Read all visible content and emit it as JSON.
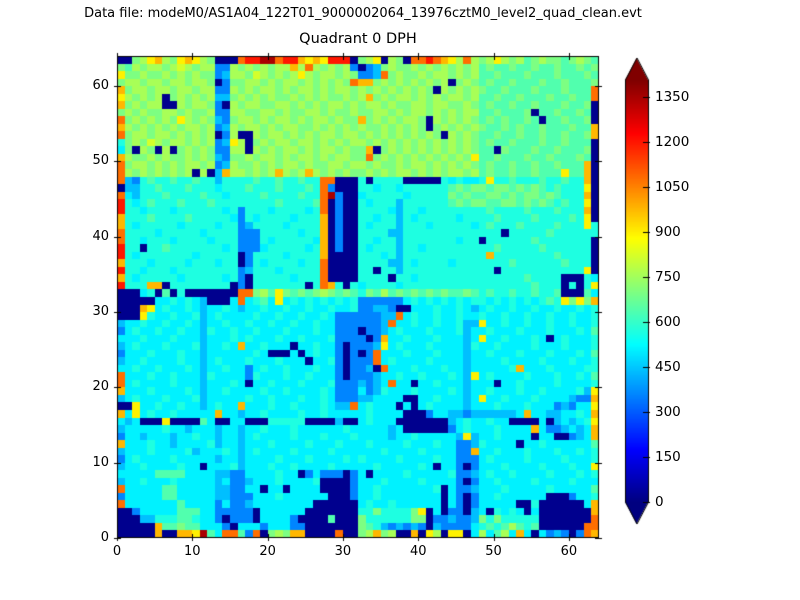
{
  "figure": {
    "suptitle": "Data file: modeM0/AS1A04_122T01_9000002064_13976cztM0_level2_quad_clean.evt",
    "title": "Quadrant 0 DPH",
    "background": "#ffffff",
    "axis_color": "#000000",
    "text_color": "#000000"
  },
  "chart_data": {
    "type": "heatmap",
    "title": "Quadrant 0 DPH",
    "xlabel": "",
    "ylabel": "",
    "x_range": [
      0,
      64
    ],
    "y_range": [
      0,
      64
    ],
    "x_ticks": [
      0,
      10,
      20,
      30,
      40,
      50,
      60
    ],
    "y_ticks": [
      0,
      10,
      20,
      30,
      40,
      50,
      60
    ],
    "grid": false,
    "colormap": "jet",
    "vmin": 0,
    "vmax": 1408,
    "colorbar": {
      "ticks": [
        0,
        150,
        300,
        450,
        600,
        750,
        900,
        1050,
        1200,
        1350
      ],
      "extend": "both",
      "min_color": "#000080",
      "max_color": "#800000"
    },
    "value_bins": {
      "0": 20,
      "1": 160,
      "2": 270,
      "3": 360,
      "4": 440,
      "5": 510,
      "6": 570,
      "7": 640,
      "8": 700,
      "9": 760,
      "a": 820,
      "b": 900,
      "c": 980,
      "d": 1080,
      "e": 1200,
      "f": 1350
    },
    "grid_encoding": "each row is 64 hex chars (col 0..63); char indexes value_bins (counts in DPH); rows listed top-to-bottom (y=63 first)",
    "grid_quads_top_to_bottom": [
      [
        "0089bc98bcb98000",
        "deeffdeecbcbeee0",
        "89b0980ddedcb9d9",
        "89b9897898878987"
      ],
      [
        "87989989a9899339",
        "8989899c9d989893",
        "0348988989898989",
        "7877877877877878"
      ],
      [
        "b889889898988349",
        "98a98989b9899898",
        "334d898898998989",
        "7787778777877787"
      ],
      [
        "8998998998998038",
        "899898998989898d",
        "cc89898989890898",
        "7877877787787778"
      ],
      [
        "c899899899899339",
        "8989989899898998",
        "9898989898098989",
        "877877787778777d"
      ],
      [
        "b989890898989448",
        "9898988989898898",
        "9c89899898989989",
        "778778777877877d"
      ],
      [
        "c898990098998309",
        "8998899898989989",
        "8998988998998898",
        "7877877877787780"
      ],
      [
        "8989889989889339",
        "9889989889989889",
        "8899898998989899",
        "7787778077877870"
      ],
      [
        "d8989898b9898438",
        "9989899898998988",
        "c898989980989898",
        "7878778707787780"
      ],
      [
        "c989898989989349",
        "8998989988989898",
        "9889898980898989",
        "877878778777877c"
      ],
      [
        "d899899898989039",
        "0098998989899899",
        "8989898989809898",
        "778778778778778c"
      ],
      [
        "6898a9899898934b",
        "9089899899898989",
        "9898989898989898",
        "7877877787787770"
      ],
      [
        "5809809089898339",
        "9098989989899898",
        "8c08989898989898",
        "7708777877877780"
      ],
      [
        "c988989889898438",
        "8989989899898998",
        "8d8989898989898b",
        "7787778778777870"
      ],
      [
        "d899898989989349",
        "8898989989889989",
        "9898898998989898",
        "78778778778777c0"
      ],
      [
        "d9898989890904c9",
        "98989c989c989898",
        "8989899898989989",
        "78778778777b77c0"
      ],
      [
        "d436766766766466",
        "66766766766dd000",
        "6066660000065655",
        "6b667666766766c0"
      ],
      [
        "0446676667666566",
        "67666766676d3000",
        "6656656666667878",
        "87887878767666b0"
      ],
      [
        "d546667666676656",
        "66676666766df300",
        "5666665666668787",
        "78878788787666c0"
      ],
      [
        "e656766676667666",
        "66666766667d0300",
        "6566646666667878",
        "87788787876766b0"
      ],
      [
        "e665666566666656",
        "36665666656d0300",
        "6666546656666666",
        "67666676667666c0"
      ],
      [
        "c666766667666665",
        "36566665666c0300",
        "6656646566666566",
        "66766667666676b0"
      ],
      [
        "c656666656666566",
        "34666656666c0300",
        "6566646665666665",
        "67666766667666b6"
      ],
      [
        "d666656666656666",
        "33366666566c0300",
        "6666446666666666",
        "6660666667666666"
      ],
      [
        "d665666566665666",
        "33365666665c0300",
        "6656646666666566",
        "0666666766666660"
      ],
      [
        "e660667666666656",
        "33356666656c0300",
        "6566646656666666",
        "6676666676666660"
      ],
      [
        "e656666666566666",
        "03666656666c0000",
        "6665646666666666",
        "6c66666666766660"
      ],
      [
        "c666566665666566",
        "03656666566d0000",
        "6666446566665666",
        "6666766666676660"
      ],
      [
        "e665666566666666",
        "34666566666d0000",
        "6606646666666666",
        "66066666666666b0"
      ],
      [
        "c656666656666656",
        "30666665666d0000",
        "6666066566666666",
        "6666667666600065"
      ],
      [
        "e666cc0666666660",
        "30666666606dc606",
        "5666656666666666",
        "666666676660606b"
      ],
      [
        "0005607060000000",
        "dd897b8787898787",
        "6879787878787787",
        "6766766766700075"
      ],
      [
        "0000055656540005",
        "d5675b5656565656",
        "3333335656565656",
        "65656565676b8b8c"
      ],
      [
        "000cb56556545565",
        "4556556556556556",
        "3344300555655654",
        "5655655655655656"
      ],
      [
        "000b655655645655",
        "5565565565565333",
        "33344d5655655655",
        "6556556556556556"
      ],
      [
        "4556556556545565",
        "5655655655655333",
        "3334d55655655644",
        "b556556556556556"
      ],
      [
        "3565565565546556",
        "5565556555655333",
        "0334565556555645",
        "5655565556555657"
      ],
      [
        "5556555655545556",
        "5655565565556333",
        "303c556555655545",
        "b556555650565556"
      ],
      [
        "4565556555645565",
        "c556555055655303",
        "334b565556555546",
        "5565555655565556"
      ],
      [
        "3555655565545555",
        "5565000505655303",
        "03d5556555655545",
        "5655565556555657"
      ],
      [
        "4556555565545655",
        "5655565550556303",
        "33d5655556555545",
        "5556555565556556"
      ],
      [
        "5565565556545565",
        "5356556555655303",
        "340d555655565545",
        "55556c5556555566"
      ],
      [
        "d555655655546555",
        "5365556556555303",
        "334556556555654b",
        "5655556555655657"
      ],
      [
        "d565555655545556",
        "5055655565556333",
        "4345d55055655545",
        "5505565555655556"
      ],
      [
        "c555655556545565",
        "5556556555565333",
        "5346555655556545",
        "565556556555564b"
      ],
      [
        "4565556555645555",
        "5655655565565333",
        "4455550055655545",
        "b55655565555433c"
      ],
      [
        "00b5565565545655",
        "c55565565556544d",
        "5655505056555545",
        "556555655534355b"
      ],
      [
        "c5b5655655555c55",
        "4556555565565555",
        "5655550003554434",
        "444445c55445565c"
      ],
      [
        "545000b000075005",
        "5000666660000400",
        "5655500000004565",
        "565500005045456b"
      ],
      [
        "4555556554555455",
        "4556555655555565",
        "5555450000003565",
        "5565555c5334545c"
      ],
      [
        "3554555455655455",
        "4565555655565556",
        "55554556555554b4",
        "556555505500345c"
      ],
      [
        "c555655455556455",
        "4555655556555655",
        "5655556555655334",
        "6555505565555557"
      ],
      [
        "4555655556455565",
        "4565555655556555",
        "555655556555533c",
        "5565556555655656"
      ],
      [
        "3565555655555455",
        "4555565556555565",
        "6555565555655333",
        "5655556555565556"
      ],
      [
        "4556555565505556",
        "4555655655556555",
        "5565555565055303",
        "555655556555655b"
      ],
      [
        "5555577775555443",
        "3555565503533303",
        "5055556555556334",
        "5655655556555656"
      ],
      [
        "4556555655555453",
        "3455565555600003",
        "5556555565555303",
        "5565555655556555"
      ],
      [
        "d555557755555443",
        "3550550555500003",
        "5565555555605334",
        "5556555556555557"
      ],
      [
        "3555557755555443",
        "3355565555550003",
        "5565555555505303",
        "5565555550003556"
      ],
      [
        "d555555575555353",
        "3455555555000000",
        "5655655555505303",
        "555550060000005c"
      ],
      [
        "0035555577755333",
        "3305555550000000",
        "66866668b0503304",
        "506565050000000c"
      ],
      [
        "0004466677655303",
        "3305555300007000",
        "8666666880334334",
        "868666660000000d"
      ],
      [
        "00000c7787755530",
        "5553555330000000",
        "8764343430433335",
        "67679767000000dd"
      ],
      [
        "00000c00ccbf75dd",
        "73d0898cc0000d00",
        "89c8900c0b90bb05",
        "95795c50534303dc"
      ]
    ]
  }
}
